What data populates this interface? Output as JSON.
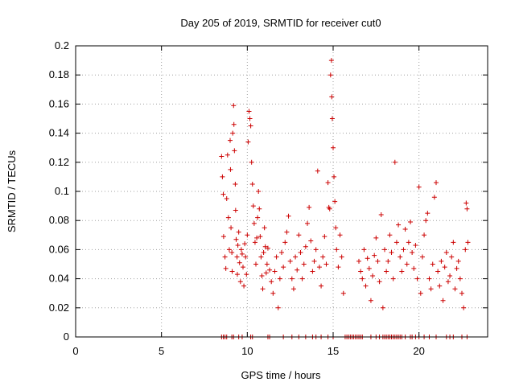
{
  "chart_data": {
    "type": "scatter",
    "title": "Day 205 of 2019, SRMTID for receiver cut0",
    "xlabel": "GPS time / hours",
    "ylabel": "SRMTID / TECUs",
    "xlim": [
      0,
      24
    ],
    "ylim": [
      0,
      0.2
    ],
    "xticks": [
      0,
      5,
      10,
      15,
      20
    ],
    "xtick_labels": [
      "0",
      "5",
      "10",
      "15",
      "20"
    ],
    "yticks": [
      0,
      0.02,
      0.04,
      0.06,
      0.08,
      0.1,
      0.12,
      0.14,
      0.16,
      0.18,
      0.2
    ],
    "ytick_labels": [
      "0",
      "0.02",
      "0.04",
      "0.06",
      "0.08",
      "0.1",
      "0.12",
      "0.14",
      "0.16",
      "0.18",
      "0.2"
    ],
    "grid": true,
    "marker": "+",
    "marker_color": "#cc0000",
    "series": [
      {
        "name": "SRMTID",
        "points": [
          [
            8.5,
            0.124
          ],
          [
            8.55,
            0.11
          ],
          [
            8.6,
            0.098
          ],
          [
            8.62,
            0.069
          ],
          [
            8.7,
            0.055
          ],
          [
            8.75,
            0.047
          ],
          [
            8.8,
            0.095
          ],
          [
            8.85,
            0.125
          ],
          [
            8.9,
            0.082
          ],
          [
            8.95,
            0.06
          ],
          [
            9.0,
            0.135
          ],
          [
            9.02,
            0.115
          ],
          [
            9.05,
            0.075
          ],
          [
            9.1,
            0.058
          ],
          [
            9.12,
            0.045
          ],
          [
            9.15,
            0.14
          ],
          [
            9.2,
            0.159
          ],
          [
            9.22,
            0.146
          ],
          [
            9.25,
            0.128
          ],
          [
            9.3,
            0.105
          ],
          [
            9.32,
            0.087
          ],
          [
            9.35,
            0.067
          ],
          [
            9.4,
            0.055
          ],
          [
            9.42,
            0.043
          ],
          [
            9.45,
            0.063
          ],
          [
            9.5,
            0.072
          ],
          [
            9.55,
            0.051
          ],
          [
            9.6,
            0.038
          ],
          [
            9.65,
            0.06
          ],
          [
            9.7,
            0.057
          ],
          [
            9.75,
            0.048
          ],
          [
            9.8,
            0.035
          ],
          [
            9.85,
            0.064
          ],
          [
            9.9,
            0.055
          ],
          [
            9.95,
            0.043
          ],
          [
            10.0,
            0.07
          ],
          [
            10.05,
            0.134
          ],
          [
            10.1,
            0.155
          ],
          [
            10.15,
            0.15
          ],
          [
            10.2,
            0.145
          ],
          [
            10.25,
            0.12
          ],
          [
            10.3,
            0.105
          ],
          [
            10.35,
            0.09
          ],
          [
            10.4,
            0.078
          ],
          [
            10.45,
            0.065
          ],
          [
            10.5,
            0.05
          ],
          [
            10.55,
            0.068
          ],
          [
            10.6,
            0.082
          ],
          [
            10.65,
            0.1
          ],
          [
            10.7,
            0.088
          ],
          [
            10.75,
            0.069
          ],
          [
            10.8,
            0.055
          ],
          [
            10.85,
            0.042
          ],
          [
            10.9,
            0.033
          ],
          [
            10.95,
            0.058
          ],
          [
            11.0,
            0.075
          ],
          [
            11.05,
            0.062
          ],
          [
            11.1,
            0.044
          ],
          [
            11.15,
            0.05
          ],
          [
            11.2,
            0.061
          ],
          [
            11.3,
            0.046
          ],
          [
            11.4,
            0.038
          ],
          [
            11.5,
            0.03
          ],
          [
            11.6,
            0.045
          ],
          [
            11.7,
            0.055
          ],
          [
            11.8,
            0.02
          ],
          [
            11.9,
            0.04
          ],
          [
            12.0,
            0.058
          ],
          [
            12.1,
            0.048
          ],
          [
            12.2,
            0.065
          ],
          [
            12.3,
            0.072
          ],
          [
            12.4,
            0.083
          ],
          [
            12.5,
            0.052
          ],
          [
            12.6,
            0.04
          ],
          [
            12.7,
            0.033
          ],
          [
            12.8,
            0.055
          ],
          [
            12.9,
            0.046
          ],
          [
            13.0,
            0.07
          ],
          [
            13.1,
            0.058
          ],
          [
            13.2,
            0.04
          ],
          [
            13.3,
            0.05
          ],
          [
            13.4,
            0.062
          ],
          [
            13.5,
            0.078
          ],
          [
            13.6,
            0.089
          ],
          [
            13.7,
            0.066
          ],
          [
            13.8,
            0.045
          ],
          [
            13.9,
            0.052
          ],
          [
            14.0,
            0.06
          ],
          [
            14.1,
            0.114
          ],
          [
            14.2,
            0.048
          ],
          [
            14.3,
            0.035
          ],
          [
            14.4,
            0.055
          ],
          [
            14.5,
            0.069
          ],
          [
            14.6,
            0.05
          ],
          [
            14.7,
            0.106
          ],
          [
            14.75,
            0.089
          ],
          [
            14.8,
            0.088
          ],
          [
            14.85,
            0.18
          ],
          [
            14.9,
            0.19
          ],
          [
            14.92,
            0.165
          ],
          [
            14.95,
            0.15
          ],
          [
            15.0,
            0.13
          ],
          [
            15.05,
            0.11
          ],
          [
            15.1,
            0.093
          ],
          [
            15.15,
            0.075
          ],
          [
            15.2,
            0.06
          ],
          [
            15.3,
            0.048
          ],
          [
            15.4,
            0.07
          ],
          [
            15.5,
            0.055
          ],
          [
            15.6,
            0.03
          ],
          [
            16.5,
            0.052
          ],
          [
            16.6,
            0.045
          ],
          [
            16.7,
            0.04
          ],
          [
            16.8,
            0.06
          ],
          [
            16.9,
            0.035
          ],
          [
            17.0,
            0.054
          ],
          [
            17.1,
            0.047
          ],
          [
            17.2,
            0.025
          ],
          [
            17.3,
            0.042
          ],
          [
            17.4,
            0.056
          ],
          [
            17.5,
            0.068
          ],
          [
            17.6,
            0.052
          ],
          [
            17.7,
            0.038
          ],
          [
            17.8,
            0.084
          ],
          [
            17.9,
            0.02
          ],
          [
            18.0,
            0.06
          ],
          [
            18.1,
            0.045
          ],
          [
            18.2,
            0.052
          ],
          [
            18.3,
            0.07
          ],
          [
            18.4,
            0.058
          ],
          [
            18.5,
            0.04
          ],
          [
            18.6,
            0.12
          ],
          [
            18.7,
            0.065
          ],
          [
            18.8,
            0.077
          ],
          [
            18.9,
            0.055
          ],
          [
            19.0,
            0.045
          ],
          [
            19.1,
            0.06
          ],
          [
            19.2,
            0.074
          ],
          [
            19.3,
            0.05
          ],
          [
            19.4,
            0.065
          ],
          [
            19.5,
            0.079
          ],
          [
            19.6,
            0.058
          ],
          [
            19.7,
            0.047
          ],
          [
            19.8,
            0.063
          ],
          [
            19.9,
            0.04
          ],
          [
            20.0,
            0.103
          ],
          [
            20.1,
            0.03
          ],
          [
            20.2,
            0.055
          ],
          [
            20.3,
            0.07
          ],
          [
            20.4,
            0.08
          ],
          [
            20.5,
            0.085
          ],
          [
            20.6,
            0.04
          ],
          [
            20.7,
            0.033
          ],
          [
            20.8,
            0.05
          ],
          [
            20.9,
            0.096
          ],
          [
            21.0,
            0.106
          ],
          [
            21.1,
            0.045
          ],
          [
            21.2,
            0.035
          ],
          [
            21.3,
            0.052
          ],
          [
            21.4,
            0.025
          ],
          [
            21.5,
            0.048
          ],
          [
            21.6,
            0.058
          ],
          [
            21.7,
            0.038
          ],
          [
            21.8,
            0.042
          ],
          [
            21.9,
            0.055
          ],
          [
            22.0,
            0.065
          ],
          [
            22.1,
            0.033
          ],
          [
            22.2,
            0.047
          ],
          [
            22.3,
            0.052
          ],
          [
            22.4,
            0.04
          ],
          [
            22.5,
            0.03
          ],
          [
            22.6,
            0.02
          ],
          [
            22.7,
            0.06
          ],
          [
            22.75,
            0.092
          ],
          [
            22.8,
            0.088
          ],
          [
            22.85,
            0.065
          ]
        ],
        "zero_points": [
          8.5,
          8.6,
          8.7,
          8.8,
          9.1,
          9.2,
          9.5,
          9.7,
          10.2,
          10.3,
          11.2,
          11.3,
          12.1,
          12.6,
          13.0,
          13.4,
          13.8,
          14.0,
          14.3,
          14.7,
          15.0,
          15.7,
          15.8,
          15.9,
          16.0,
          16.1,
          16.2,
          16.3,
          16.4,
          16.5,
          16.6,
          16.7,
          17.2,
          17.5,
          17.7,
          17.9,
          18.0,
          18.1,
          18.2,
          18.3,
          18.4,
          18.5,
          18.6,
          18.7,
          18.8,
          18.9,
          19.0,
          19.2,
          19.5,
          19.6,
          19.8,
          20.0,
          20.3,
          20.6,
          21.0,
          21.6,
          21.8,
          22.0,
          22.5,
          22.8
        ]
      }
    ]
  }
}
